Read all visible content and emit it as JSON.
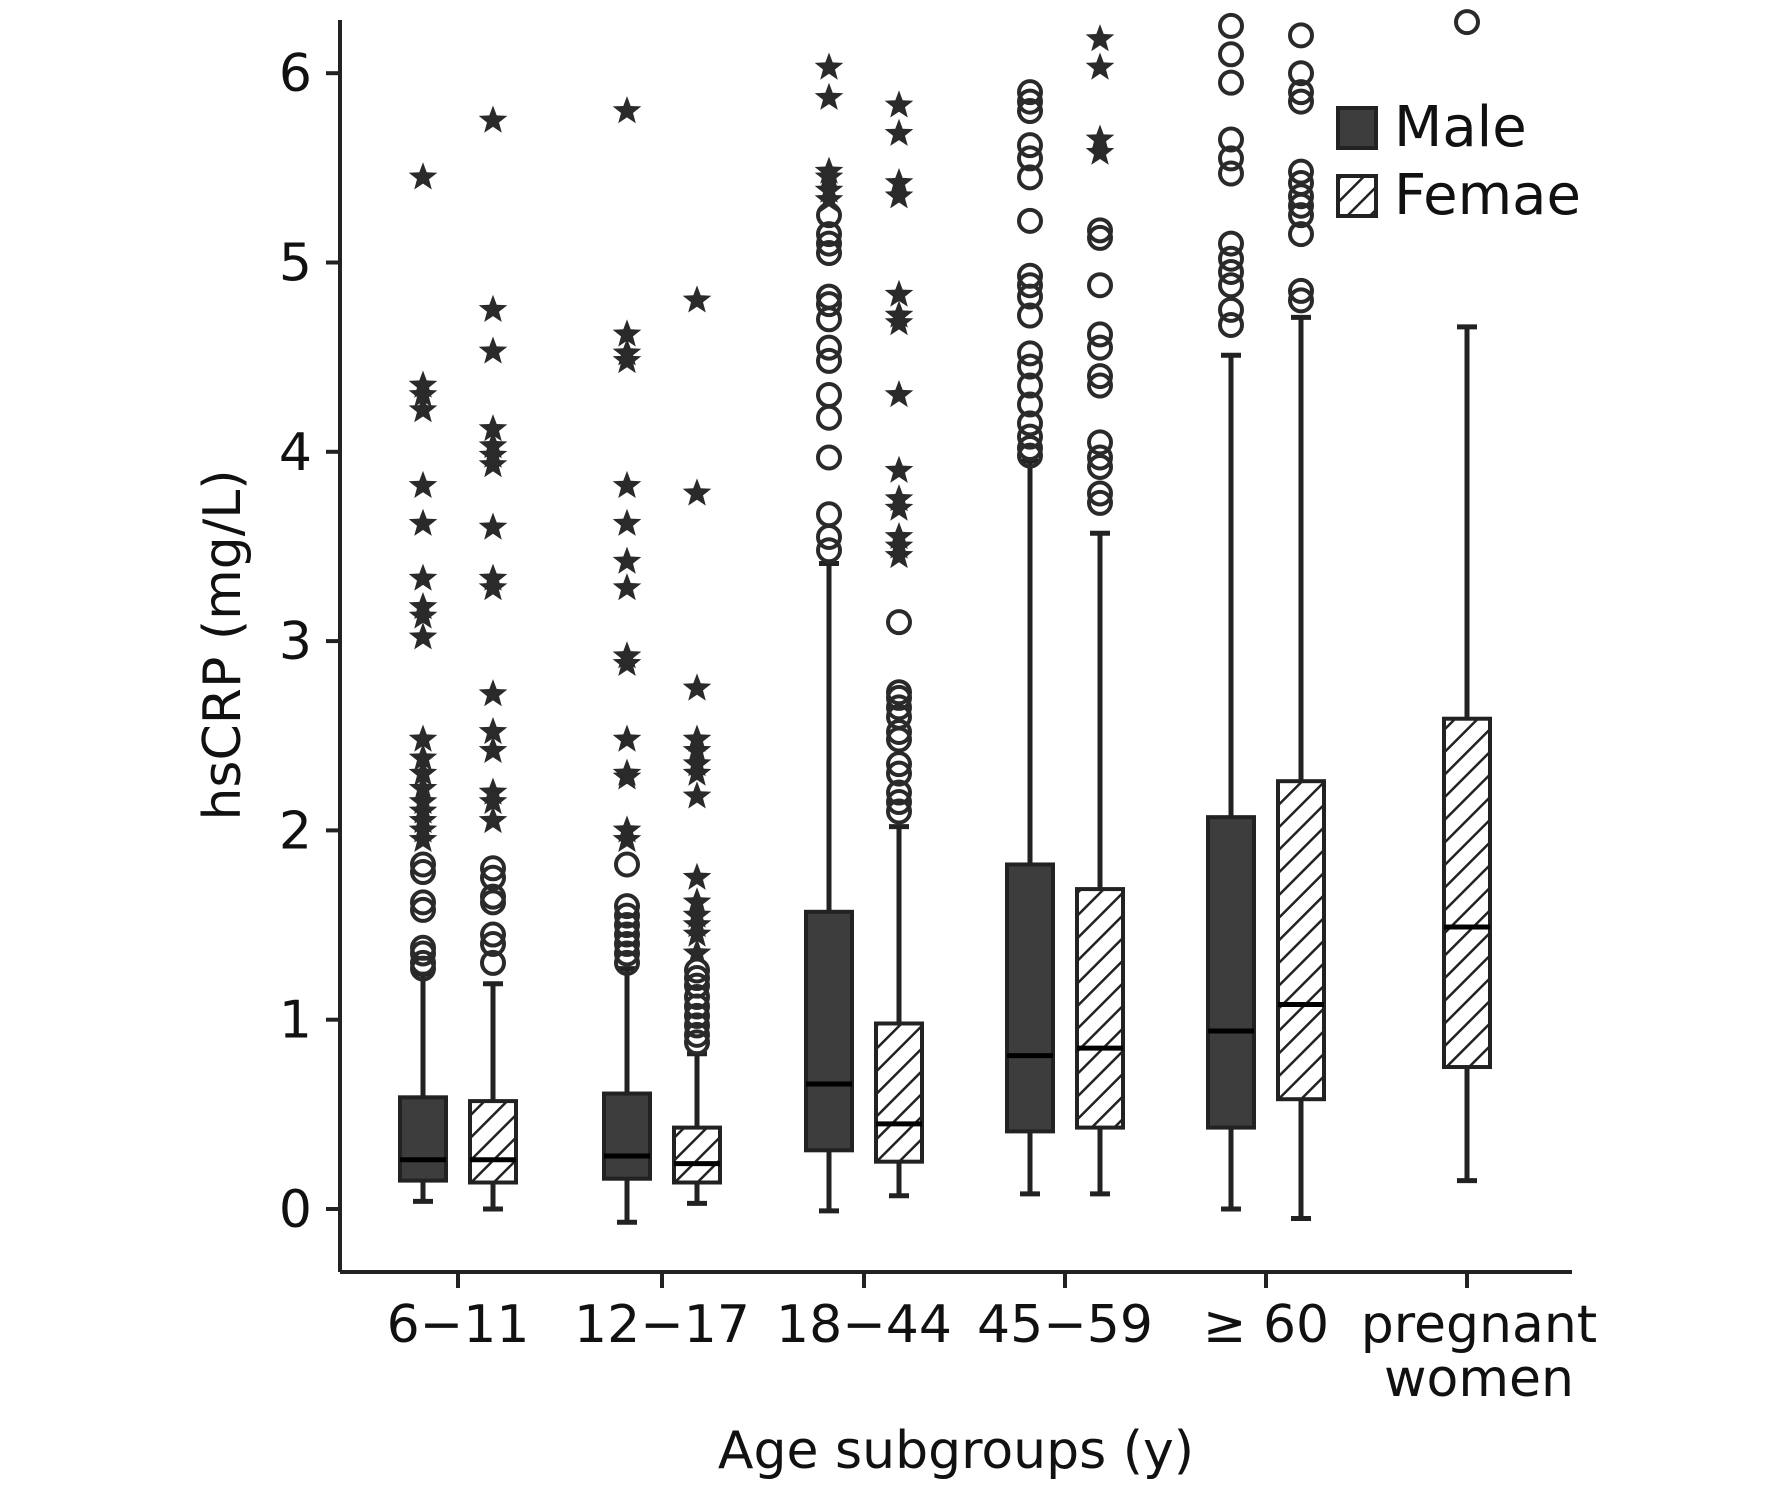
{
  "chart_data": {
    "type": "boxplot",
    "title": "",
    "xlabel": "Age subgroups (y)",
    "ylabel": "hsCRP (mg/L)",
    "ylim": [
      -0.3,
      6.3
    ],
    "yticks": [
      "0",
      "1",
      "2",
      "3",
      "4",
      "5",
      "6"
    ],
    "categories": [
      "6−11",
      "12−17",
      "18−44",
      "45−59",
      "≥ 60",
      "pregnant women"
    ],
    "category_lines": [
      [
        "6−11"
      ],
      [
        "12−17"
      ],
      [
        "18−44"
      ],
      [
        "45−59"
      ],
      [
        "≥ 60"
      ],
      [
        "pregnant",
        "women"
      ]
    ],
    "legend": {
      "position": "top-right",
      "entries": [
        "Male",
        "Femae"
      ]
    },
    "colors": {
      "male": "#3d3d3d",
      "female_fill": "#ffffff",
      "female_hatch": "#222222",
      "axis": "#222222"
    },
    "series": [
      {
        "name": "Male",
        "boxes": [
          {
            "category": "6−11",
            "whisker_low": 0.04,
            "q1": 0.15,
            "median": 0.26,
            "q3": 0.59,
            "whisker_high": 1.24,
            "outliers_circle": [
              1.27,
              1.3,
              1.35,
              1.38,
              1.58,
              1.62,
              1.78,
              1.82
            ],
            "outliers_star": [
              1.95,
              2.0,
              2.05,
              2.1,
              2.15,
              2.22,
              2.3,
              2.38,
              2.48,
              3.02,
              3.13,
              3.18,
              3.33,
              3.62,
              3.82,
              4.22,
              4.3,
              4.35,
              5.45
            ]
          },
          {
            "category": "12−17",
            "whisker_low": -0.07,
            "q1": 0.16,
            "median": 0.28,
            "q3": 0.61,
            "whisker_high": 1.27,
            "outliers_circle": [
              1.3,
              1.35,
              1.4,
              1.45,
              1.5,
              1.55,
              1.6,
              1.82
            ],
            "outliers_star": [
              1.95,
              2.0,
              2.28,
              2.3,
              2.48,
              2.88,
              2.92,
              3.28,
              3.42,
              3.62,
              3.82,
              4.48,
              4.52,
              4.62,
              5.8
            ]
          },
          {
            "category": "18−44",
            "whisker_low": -0.01,
            "q1": 0.31,
            "median": 0.66,
            "q3": 1.57,
            "whisker_high": 3.41,
            "outliers_circle": [
              3.48,
              3.55,
              3.67,
              3.97,
              4.18,
              4.3,
              4.48,
              4.55,
              4.7,
              4.78,
              4.82,
              5.05,
              5.1,
              5.15,
              5.25
            ],
            "outliers_star": [
              5.33,
              5.38,
              5.45,
              5.48,
              5.87,
              6.03
            ]
          },
          {
            "category": "45−59",
            "whisker_low": 0.08,
            "q1": 0.41,
            "median": 0.81,
            "q3": 1.82,
            "whisker_high": 3.95,
            "outliers_circle": [
              3.98,
              4.02,
              4.08,
              4.15,
              4.25,
              4.35,
              4.45,
              4.52,
              4.72,
              4.82,
              4.88,
              4.93,
              5.22,
              5.45,
              5.55,
              5.62,
              5.8,
              5.85,
              5.9
            ]
          },
          {
            "category": "≥ 60",
            "whisker_low": 0.0,
            "q1": 0.43,
            "median": 0.94,
            "q3": 2.07,
            "whisker_high": 4.51,
            "outliers_circle": [
              4.67,
              4.75,
              4.88,
              4.95,
              5.02,
              5.1,
              5.47,
              5.55,
              5.65,
              5.95,
              6.1,
              6.25
            ]
          }
        ]
      },
      {
        "name": "Femae",
        "boxes": [
          {
            "category": "6−11",
            "whisker_low": 0.0,
            "q1": 0.14,
            "median": 0.26,
            "q3": 0.57,
            "whisker_high": 1.19,
            "outliers_circle": [
              1.3,
              1.4,
              1.45,
              1.62,
              1.65,
              1.75,
              1.8
            ],
            "outliers_star": [
              2.05,
              2.15,
              2.2,
              2.42,
              2.52,
              2.72,
              3.28,
              3.33,
              3.6,
              3.93,
              3.98,
              4.03,
              4.12,
              4.53,
              4.75,
              5.75
            ]
          },
          {
            "category": "12−17",
            "whisker_low": 0.03,
            "q1": 0.14,
            "median": 0.24,
            "q3": 0.43,
            "whisker_high": 0.82,
            "outliers_circle": [
              0.88,
              0.92,
              0.97,
              1.02,
              1.07,
              1.12,
              1.18,
              1.22,
              1.26
            ],
            "outliers_star": [
              1.35,
              1.45,
              1.5,
              1.55,
              1.62,
              1.75,
              2.18,
              2.3,
              2.35,
              2.42,
              2.48,
              2.75,
              3.78,
              4.8
            ]
          },
          {
            "category": "18−44",
            "whisker_low": 0.07,
            "q1": 0.25,
            "median": 0.45,
            "q3": 0.98,
            "whisker_high": 2.02,
            "outliers_circle": [
              2.1,
              2.15,
              2.2,
              2.3,
              2.35,
              2.48,
              2.52,
              2.6,
              2.65,
              2.7,
              2.73,
              3.1
            ],
            "outliers_star": [
              3.45,
              3.5,
              3.55,
              3.7,
              3.75,
              3.9,
              4.3,
              4.68,
              4.72,
              4.83,
              5.35,
              5.42,
              5.68,
              5.83
            ]
          },
          {
            "category": "45−59",
            "whisker_low": 0.08,
            "q1": 0.43,
            "median": 0.85,
            "q3": 1.69,
            "whisker_high": 3.57,
            "outliers_circle": [
              3.73,
              3.78,
              3.92,
              3.97,
              4.05,
              4.35,
              4.4,
              4.55,
              4.62,
              4.88,
              5.13,
              5.17
            ],
            "outliers_star": [
              5.58,
              5.65,
              6.03,
              6.18
            ]
          },
          {
            "category": "≥ 60",
            "whisker_low": -0.05,
            "q1": 0.58,
            "median": 1.08,
            "q3": 2.26,
            "whisker_high": 4.71,
            "outliers_circle": [
              4.8,
              4.85,
              5.15,
              5.25,
              5.3,
              5.35,
              5.42,
              5.48,
              5.85,
              5.9,
              6.0,
              6.2
            ]
          },
          {
            "category": "pregnant women",
            "whisker_low": 0.15,
            "q1": 0.75,
            "median": 1.49,
            "q3": 2.59,
            "whisker_high": 4.66,
            "outliers_circle": [
              6.27
            ]
          }
        ]
      }
    ]
  }
}
